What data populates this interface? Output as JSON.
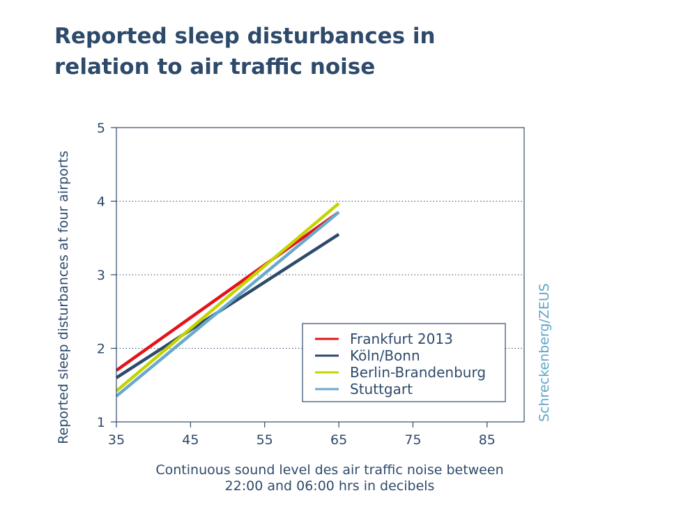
{
  "title_lines": [
    "Reported sleep disturbances in",
    "relation to air traffic noise"
  ],
  "source": "Schreckenberg/ZEUS",
  "colors": {
    "text": "#2e4a6b",
    "axis": "#2e4a6b",
    "source": "#5fa4c8"
  },
  "chart_data": {
    "type": "line",
    "ylabel": "Reported sleep disturbances at four airports",
    "xlabel_lines": [
      "Continuous sound level des air traffic noise between",
      "22:00 and 06:00 hrs in decibels"
    ],
    "xlim": [
      35,
      90
    ],
    "ylim": [
      1,
      5
    ],
    "xticks": [
      35,
      45,
      55,
      65,
      75,
      85
    ],
    "yticks": [
      1,
      2,
      3,
      4,
      5
    ],
    "grid": "dotted horizontal at 2, 3, 4",
    "legend_position": "lower-right",
    "series": [
      {
        "name": "Frankfurt 2013",
        "color": "#e3131b",
        "x": [
          35,
          65
        ],
        "y": [
          1.7,
          3.85
        ]
      },
      {
        "name": "Köln/Bonn",
        "color": "#2e4a6b",
        "x": [
          35,
          65
        ],
        "y": [
          1.6,
          3.55
        ]
      },
      {
        "name": "Berlin-Brandenburg",
        "color": "#c3d400",
        "x": [
          35,
          65
        ],
        "y": [
          1.42,
          3.97
        ]
      },
      {
        "name": "Stuttgart",
        "color": "#6aa8cc",
        "x": [
          35,
          65
        ],
        "y": [
          1.35,
          3.85
        ]
      }
    ]
  }
}
